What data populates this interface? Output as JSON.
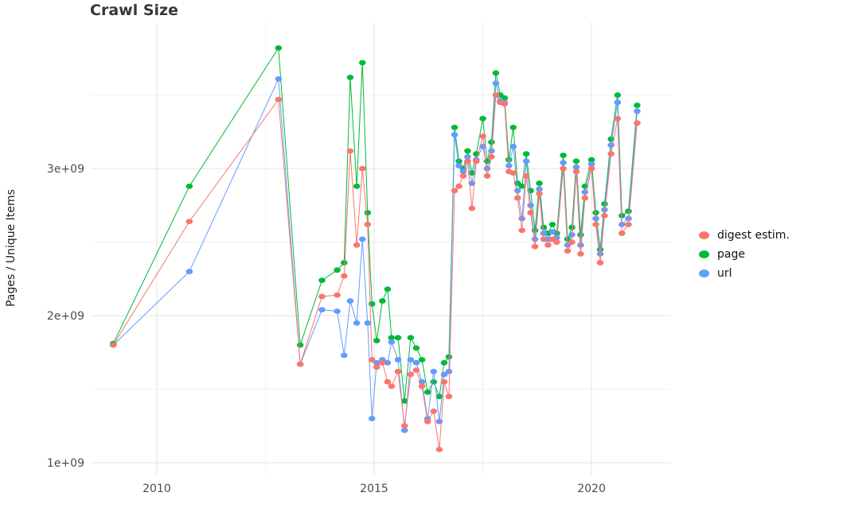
{
  "page": {
    "background_color": "#ffffff"
  },
  "chart_data": {
    "type": "line",
    "title": "Crawl Size",
    "xlabel": "",
    "ylabel": "Pages / Unique Items",
    "y_unit": "items; series values are in units of 1e9 (billions)",
    "xlim": [
      2008.5,
      2021.83
    ],
    "ylim": [
      0.919,
      3.995
    ],
    "x_ticks": [
      {
        "value": 2010,
        "label": "2010"
      },
      {
        "value": 2015,
        "label": "2015"
      },
      {
        "value": 2020,
        "label": "2020"
      }
    ],
    "y_ticks": [
      {
        "value": 1,
        "label": "1e+09"
      },
      {
        "value": 2,
        "label": "2e+09"
      },
      {
        "value": 3,
        "label": "3e+09"
      }
    ],
    "grid": {
      "on": true,
      "major_color": "#e6e6e6",
      "minor_color": "#f0f0f0",
      "minor_x": [
        2012.5,
        2017.5
      ],
      "minor_y": [
        1.5,
        2.5,
        3.5
      ]
    },
    "axis": {
      "tick_color": "#4d4d4d"
    },
    "legend": {
      "position": "right",
      "entries": [
        {
          "label": "digest estim.",
          "color": "#F8766D"
        },
        {
          "label": "page",
          "color": "#00BA38"
        },
        {
          "label": "url",
          "color": "#619CFF"
        }
      ]
    },
    "draw_order": [
      1,
      2,
      0
    ],
    "x": [
      2009.0,
      2010.75,
      2012.8,
      2013.3,
      2013.8,
      2014.15,
      2014.31,
      2014.45,
      2014.6,
      2014.73,
      2014.85,
      2014.95,
      2015.06,
      2015.19,
      2015.31,
      2015.4,
      2015.55,
      2015.7,
      2015.84,
      2015.97,
      2016.1,
      2016.23,
      2016.37,
      2016.5,
      2016.61,
      2016.72,
      2016.85,
      2016.95,
      2017.05,
      2017.15,
      2017.25,
      2017.35,
      2017.5,
      2017.6,
      2017.7,
      2017.8,
      2017.9,
      2018.0,
      2018.1,
      2018.2,
      2018.3,
      2018.4,
      2018.5,
      2018.6,
      2018.7,
      2018.8,
      2018.9,
      2019.0,
      2019.1,
      2019.2,
      2019.35,
      2019.45,
      2019.55,
      2019.65,
      2019.75,
      2019.85,
      2020.0,
      2020.1,
      2020.2,
      2020.3,
      2020.45,
      2020.6,
      2020.7,
      2020.85,
      2021.05
    ],
    "series": [
      {
        "name": "digest estim.",
        "color": "#F8766D",
        "values": [
          1.8,
          2.64,
          3.47,
          1.67,
          2.13,
          2.14,
          2.27,
          3.12,
          2.48,
          3.0,
          2.62,
          1.7,
          1.65,
          1.68,
          1.55,
          1.52,
          1.62,
          1.25,
          1.6,
          1.63,
          1.52,
          1.28,
          1.35,
          1.09,
          1.55,
          1.45,
          2.85,
          2.88,
          2.95,
          3.05,
          2.73,
          3.05,
          3.22,
          2.95,
          3.08,
          3.5,
          3.45,
          3.44,
          2.98,
          2.97,
          2.8,
          2.58,
          2.95,
          2.7,
          2.47,
          2.83,
          2.52,
          2.48,
          2.52,
          2.5,
          3.0,
          2.44,
          2.5,
          2.98,
          2.42,
          2.8,
          3.0,
          2.62,
          2.36,
          2.68,
          3.1,
          3.34,
          2.56,
          2.62,
          3.31
        ]
      },
      {
        "name": "page",
        "color": "#00BA38",
        "values": [
          1.81,
          2.88,
          3.82,
          1.8,
          2.24,
          2.31,
          2.36,
          3.62,
          2.88,
          3.72,
          2.7,
          2.08,
          1.83,
          2.1,
          2.18,
          1.85,
          1.85,
          1.42,
          1.85,
          1.78,
          1.7,
          1.48,
          1.55,
          1.45,
          1.68,
          1.72,
          3.28,
          3.05,
          3.0,
          3.12,
          2.97,
          3.1,
          3.34,
          3.05,
          3.18,
          3.65,
          3.5,
          3.48,
          3.06,
          3.28,
          2.9,
          2.88,
          3.1,
          2.85,
          2.58,
          2.9,
          2.6,
          2.56,
          2.62,
          2.56,
          3.09,
          2.52,
          2.6,
          3.05,
          2.55,
          2.88,
          3.06,
          2.7,
          2.45,
          2.76,
          3.2,
          3.5,
          2.68,
          2.71,
          3.43
        ]
      },
      {
        "name": "url",
        "color": "#619CFF",
        "values": [
          1.8,
          2.3,
          3.61,
          1.67,
          2.04,
          2.03,
          1.73,
          2.1,
          1.95,
          2.52,
          1.95,
          1.3,
          1.68,
          1.7,
          1.68,
          1.82,
          1.7,
          1.22,
          1.7,
          1.68,
          1.55,
          1.3,
          1.62,
          1.28,
          1.6,
          1.62,
          3.23,
          3.02,
          2.98,
          3.08,
          2.9,
          3.06,
          3.15,
          3.0,
          3.12,
          3.58,
          3.46,
          3.45,
          3.02,
          3.15,
          2.85,
          2.66,
          3.05,
          2.75,
          2.52,
          2.86,
          2.56,
          2.52,
          2.57,
          2.53,
          3.04,
          2.48,
          2.55,
          3.01,
          2.48,
          2.84,
          3.03,
          2.66,
          2.42,
          2.72,
          3.16,
          3.45,
          2.62,
          2.66,
          3.39
        ]
      }
    ]
  }
}
